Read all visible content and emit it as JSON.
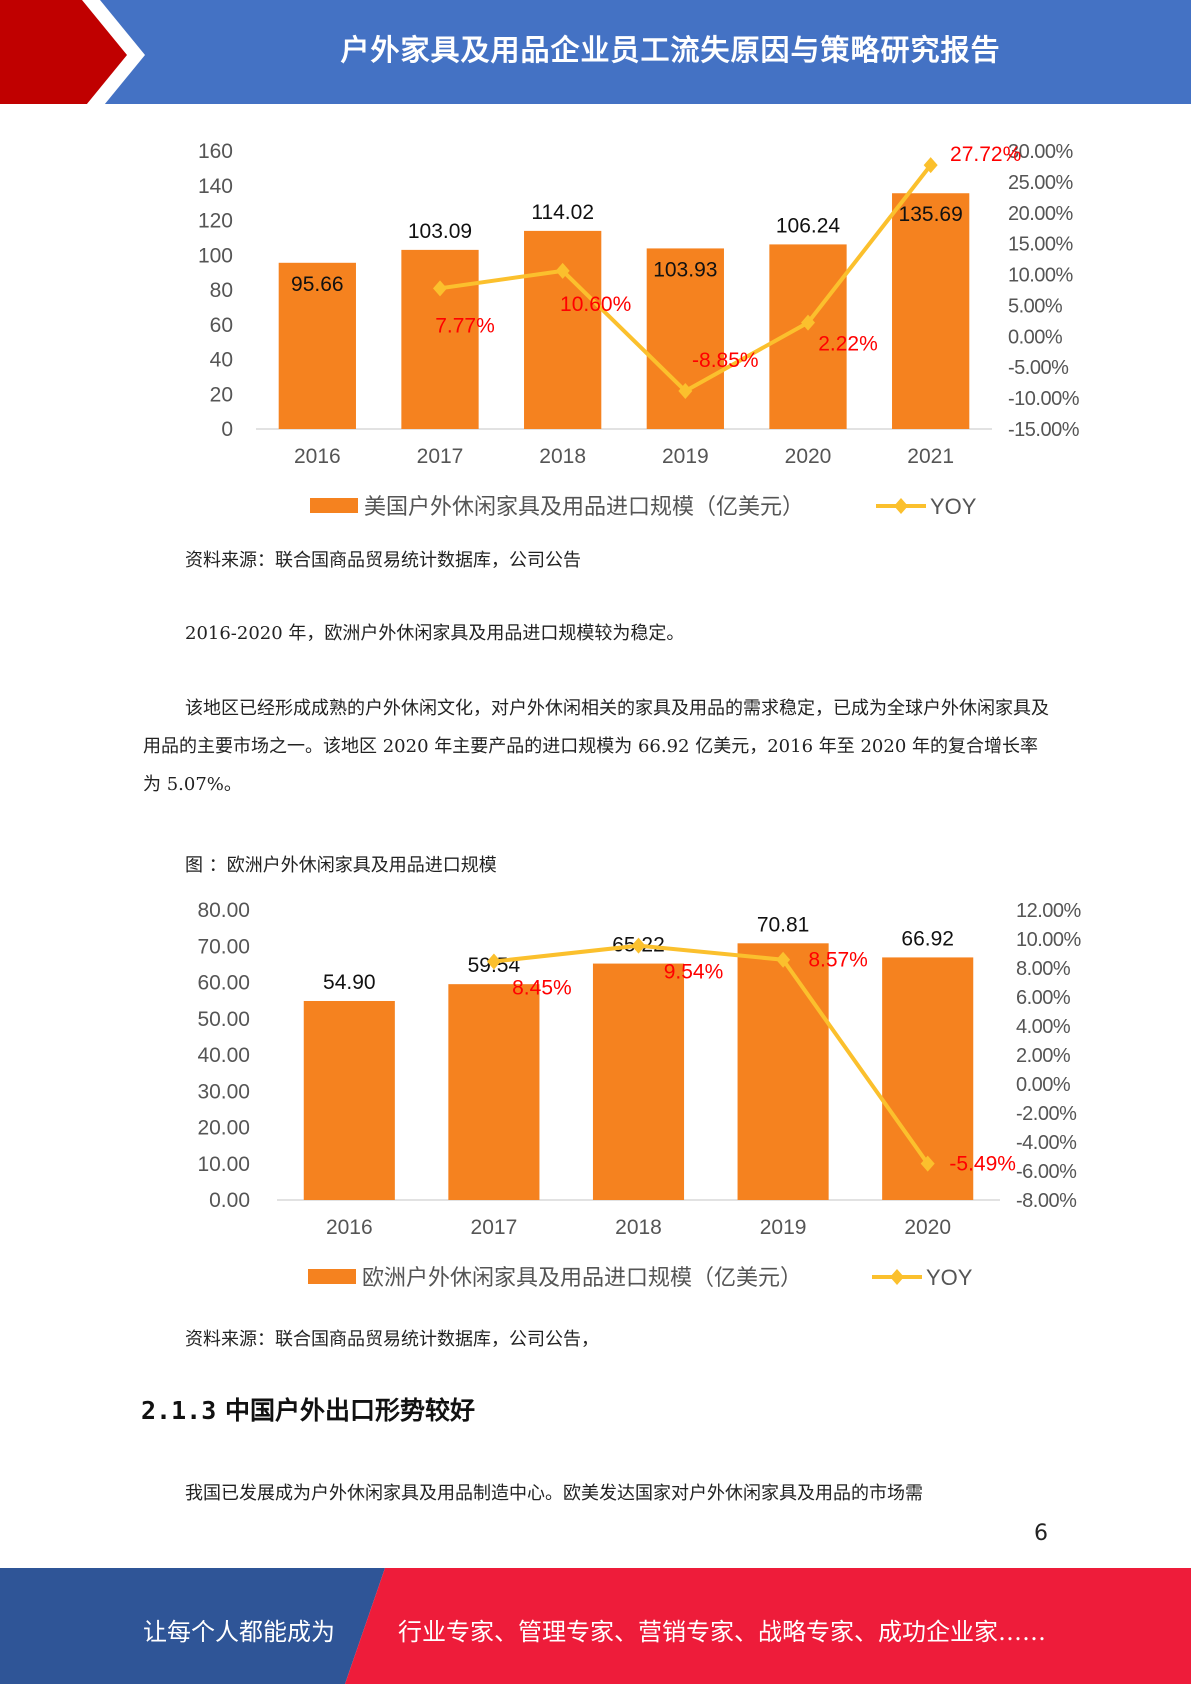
{
  "header": {
    "title": "户外家具及用品企业员工流失原因与策略研究报告"
  },
  "chart1": {
    "chart_data": {
      "type": "bar",
      "categories": [
        "2016",
        "2017",
        "2018",
        "2019",
        "2020",
        "2021"
      ],
      "series": [
        {
          "name": "美国户外休闲家具及用品进口规模（亿美元）",
          "type": "bar",
          "axis": "left",
          "values": [
            95.66,
            103.09,
            114.02,
            103.93,
            106.24,
            135.69
          ],
          "labels": [
            "95.66",
            "103.09",
            "114.02",
            "103.93",
            "106.24",
            "135.69"
          ]
        },
        {
          "name": "YOY",
          "type": "line",
          "axis": "right",
          "values": [
            null,
            7.77,
            10.6,
            -8.85,
            2.22,
            27.72
          ],
          "labels": [
            "",
            "7.77%",
            "10.60%",
            "-8.85%",
            "2.22%",
            "27.72%"
          ]
        }
      ],
      "y_left": {
        "min": 0,
        "max": 160,
        "step": 20,
        "ticks": [
          "0",
          "20",
          "40",
          "60",
          "80",
          "100",
          "120",
          "140",
          "160"
        ]
      },
      "y_right": {
        "min": -15,
        "max": 30,
        "step": 5,
        "ticks": [
          "-15.00%",
          "-10.00%",
          "-5.00%",
          "0.00%",
          "5.00%",
          "10.00%",
          "15.00%",
          "20.00%",
          "25.00%",
          "30.00%"
        ]
      },
      "legend_position": "bottom",
      "colors": {
        "bar": "#f5821f",
        "line": "#fbc02d",
        "yoy_label": "#ff0000"
      }
    }
  },
  "source1": "资料来源：联合国商品贸易统计数据库，公司公告",
  "para1": "2016-2020 年，欧洲户外休闲家具及用品进口规模较为稳定。",
  "para2": "该地区已经形成成熟的户外休闲文化，对户外休闲相关的家具及用品的需求稳定，已成为全球户外休闲家具及用品的主要市场之一。该地区 2020 年主要产品的进口规模为 66.92 亿美元，2016 年至 2020 年的复合增长率为 5.07%。",
  "fig_caption": "图 ：欧洲户外休闲家具及用品进口规模",
  "chart2": {
    "chart_data": {
      "type": "bar",
      "categories": [
        "2016",
        "2017",
        "2018",
        "2019",
        "2020"
      ],
      "series": [
        {
          "name": "欧洲户外休闲家具及用品进口规模（亿美元）",
          "type": "bar",
          "axis": "left",
          "values": [
            54.9,
            59.54,
            65.22,
            70.81,
            66.92
          ],
          "labels": [
            "54.90",
            "59.54",
            "65.22",
            "70.81",
            "66.92"
          ]
        },
        {
          "name": "YOY",
          "type": "line",
          "axis": "right",
          "values": [
            null,
            8.45,
            9.54,
            8.57,
            -5.49
          ],
          "labels": [
            "",
            "8.45%",
            "9.54%",
            "8.57%",
            "-5.49%"
          ]
        }
      ],
      "y_left": {
        "min": 0,
        "max": 80,
        "step": 10,
        "ticks": [
          "0.00",
          "10.00",
          "20.00",
          "30.00",
          "40.00",
          "50.00",
          "60.00",
          "70.00",
          "80.00"
        ]
      },
      "y_right": {
        "min": -8,
        "max": 12,
        "step": 2,
        "ticks": [
          "-8.00%",
          "-6.00%",
          "-4.00%",
          "-2.00%",
          "0.00%",
          "2.00%",
          "4.00%",
          "6.00%",
          "8.00%",
          "10.00%",
          "12.00%"
        ]
      },
      "legend_position": "bottom",
      "colors": {
        "bar": "#f5821f",
        "line": "#fbc02d",
        "yoy_label": "#ff0000"
      }
    }
  },
  "source2": "资料来源：联合国商品贸易统计数据库，公司公告，",
  "section": {
    "number": "2.1.3",
    "title": "中国户外出口形势较好"
  },
  "para3": "我国已发展成为户外休闲家具及用品制造中心。欧美发达国家对户外休闲家具及用品的市场需",
  "page_number": "6",
  "footer": {
    "left": "让每个人都能成为",
    "right": "行业专家、管理专家、营销专家、战略专家、成功企业家……"
  }
}
